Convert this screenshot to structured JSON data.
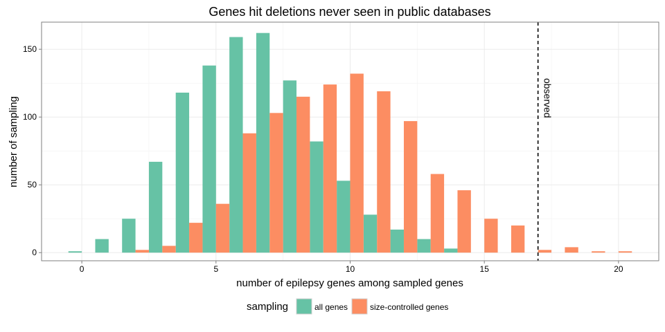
{
  "chart_data": {
    "type": "bar",
    "title": "Genes hit deletions never seen in public databases",
    "xlabel": "number of epilepsy genes among sampled genes",
    "ylabel": "number of sampling",
    "xlim": [
      -1.5,
      21.5
    ],
    "ylim": [
      -6,
      170
    ],
    "x_ticks": [
      0,
      5,
      10,
      15,
      20
    ],
    "y_ticks": [
      0,
      50,
      100,
      150
    ],
    "grid": true,
    "legend": {
      "title": "sampling",
      "position": "bottom",
      "entries": [
        "all genes",
        "size-controlled genes"
      ]
    },
    "series": [
      {
        "name": "all genes",
        "color": "#66c2a5",
        "points": [
          [
            0,
            1
          ],
          [
            1,
            10
          ],
          [
            2,
            25
          ],
          [
            3,
            67
          ],
          [
            4,
            118
          ],
          [
            5,
            138
          ],
          [
            6,
            159
          ],
          [
            7,
            162
          ],
          [
            8,
            127
          ],
          [
            9,
            82
          ],
          [
            10,
            53
          ],
          [
            11,
            28
          ],
          [
            12,
            17
          ],
          [
            13,
            10
          ],
          [
            14,
            3
          ]
        ]
      },
      {
        "name": "size-controlled genes",
        "color": "#fc8d62",
        "points": [
          [
            2,
            2
          ],
          [
            3,
            5
          ],
          [
            4,
            22
          ],
          [
            5,
            36
          ],
          [
            6,
            88
          ],
          [
            7,
            103
          ],
          [
            8,
            115
          ],
          [
            9,
            124
          ],
          [
            10,
            132
          ],
          [
            11,
            119
          ],
          [
            12,
            97
          ],
          [
            13,
            58
          ],
          [
            14,
            46
          ],
          [
            15,
            25
          ],
          [
            16,
            20
          ],
          [
            17,
            2
          ],
          [
            18,
            4
          ],
          [
            19,
            1
          ],
          [
            20,
            1
          ]
        ]
      }
    ],
    "reference_line": {
      "x": 17,
      "label": "observed",
      "style": "dashed"
    }
  }
}
